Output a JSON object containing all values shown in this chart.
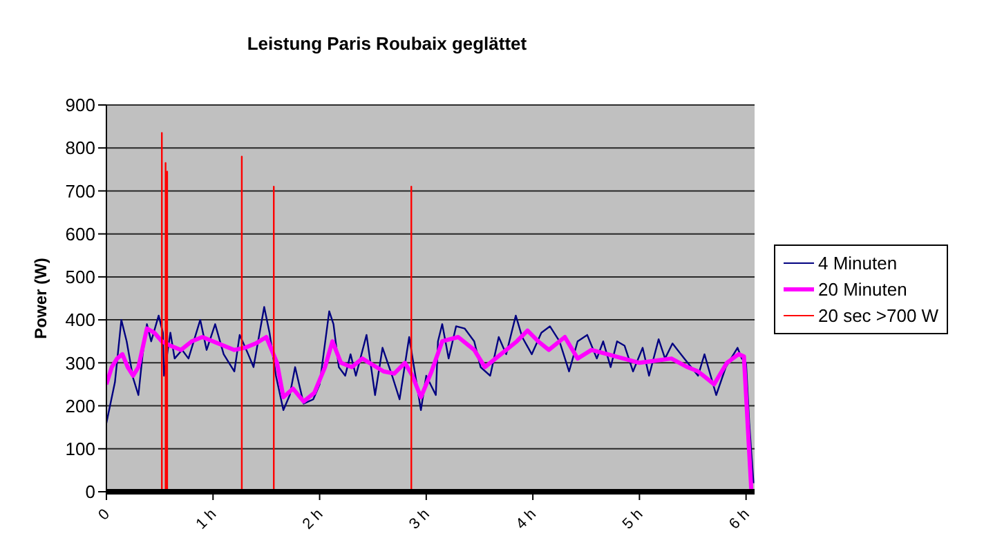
{
  "chart_data": {
    "type": "line",
    "title": "Leistung Paris Roubaix geglättet",
    "ylabel": "Power (W)",
    "xlim": [
      0,
      6.08
    ],
    "xticks": [
      0,
      {
        "value": 1,
        "label": "1 h"
      },
      {
        "value": 2,
        "label": "2 h"
      },
      {
        "value": 3,
        "label": "3 h"
      },
      {
        "value": 4,
        "label": "4 h"
      },
      {
        "value": 5,
        "label": "5 h"
      },
      {
        "value": 6,
        "label": "6 h"
      }
    ],
    "ylim": [
      0,
      900
    ],
    "yticks": [
      0,
      100,
      200,
      300,
      400,
      500,
      600,
      700,
      800,
      900
    ],
    "grid": "y",
    "legend": "right",
    "marker": "none",
    "line_style": "solid",
    "series": [
      {
        "name": "4 Minuten",
        "color": "#000080",
        "x": [
          0,
          0.08,
          0.14,
          0.19,
          0.25,
          0.3,
          0.34,
          0.38,
          0.42,
          0.49,
          0.53,
          0.54,
          0.6,
          0.64,
          0.71,
          0.77,
          0.88,
          0.94,
          1.02,
          1.1,
          1.2,
          1.25,
          1.33,
          1.38,
          1.48,
          1.53,
          1.59,
          1.66,
          1.72,
          1.77,
          1.85,
          1.94,
          2.0,
          2.09,
          2.13,
          2.18,
          2.24,
          2.29,
          2.34,
          2.44,
          2.52,
          2.59,
          2.68,
          2.75,
          2.84,
          2.95,
          3.0,
          3.09,
          3.11,
          3.15,
          3.21,
          3.28,
          3.36,
          3.45,
          3.51,
          3.6,
          3.68,
          3.75,
          3.84,
          3.9,
          3.99,
          4.08,
          4.16,
          4.25,
          4.34,
          4.42,
          4.51,
          4.6,
          4.66,
          4.73,
          4.79,
          4.86,
          4.94,
          5.03,
          5.09,
          5.18,
          5.24,
          5.31,
          5.42,
          5.55,
          5.61,
          5.72,
          5.81,
          5.92,
          5.96,
          6.0,
          6.03,
          6.07
        ],
        "values": [
          160,
          255,
          400,
          350,
          265,
          225,
          320,
          390,
          350,
          410,
          370,
          270,
          370,
          310,
          330,
          310,
          400,
          330,
          390,
          320,
          280,
          365,
          320,
          290,
          430,
          370,
          270,
          190,
          225,
          290,
          205,
          215,
          250,
          420,
          390,
          290,
          270,
          320,
          270,
          365,
          225,
          335,
          270,
          215,
          360,
          190,
          270,
          225,
          350,
          390,
          310,
          385,
          380,
          350,
          290,
          270,
          360,
          320,
          410,
          360,
          320,
          370,
          385,
          350,
          280,
          350,
          365,
          310,
          350,
          290,
          350,
          340,
          280,
          335,
          270,
          355,
          310,
          345,
          310,
          270,
          320,
          225,
          290,
          335,
          310,
          300,
          160,
          20
        ]
      },
      {
        "name": "20 Minuten",
        "color": "#ff00ff",
        "x": [
          0,
          0.05,
          0.1,
          0.15,
          0.2,
          0.25,
          0.3,
          0.38,
          0.45,
          0.52,
          0.6,
          0.7,
          0.8,
          0.9,
          1.0,
          1.1,
          1.2,
          1.3,
          1.4,
          1.5,
          1.6,
          1.66,
          1.75,
          1.85,
          1.95,
          2.05,
          2.12,
          2.2,
          2.3,
          2.4,
          2.5,
          2.6,
          2.7,
          2.8,
          2.87,
          2.95,
          3.05,
          3.15,
          3.3,
          3.45,
          3.55,
          3.7,
          3.85,
          3.95,
          4.05,
          4.15,
          4.3,
          4.42,
          4.55,
          4.7,
          4.85,
          5.0,
          5.15,
          5.3,
          5.45,
          5.55,
          5.7,
          5.82,
          5.93,
          5.98,
          6.05
        ],
        "values": [
          250,
          290,
          310,
          320,
          290,
          270,
          290,
          380,
          370,
          350,
          340,
          330,
          350,
          360,
          350,
          340,
          330,
          335,
          345,
          360,
          300,
          220,
          240,
          210,
          230,
          290,
          350,
          300,
          290,
          310,
          295,
          280,
          275,
          300,
          270,
          220,
          280,
          350,
          360,
          330,
          290,
          320,
          350,
          375,
          350,
          330,
          360,
          310,
          330,
          320,
          310,
          300,
          305,
          310,
          290,
          280,
          250,
          300,
          320,
          315,
          0
        ]
      },
      {
        "name": "20 sec >700 W",
        "color": "#ff0000",
        "x": [
          0,
          0.52,
          0.52,
          0.52,
          0.555,
          0.555,
          0.555,
          0.57,
          0.57,
          0.57,
          1.27,
          1.27,
          1.27,
          1.57,
          1.57,
          1.57,
          2.86,
          2.86,
          2.86,
          6.06
        ],
        "values": [
          0,
          0,
          835,
          0,
          0,
          765,
          0,
          0,
          745,
          0,
          0,
          780,
          0,
          0,
          710,
          0,
          0,
          710,
          0,
          0
        ]
      }
    ]
  }
}
